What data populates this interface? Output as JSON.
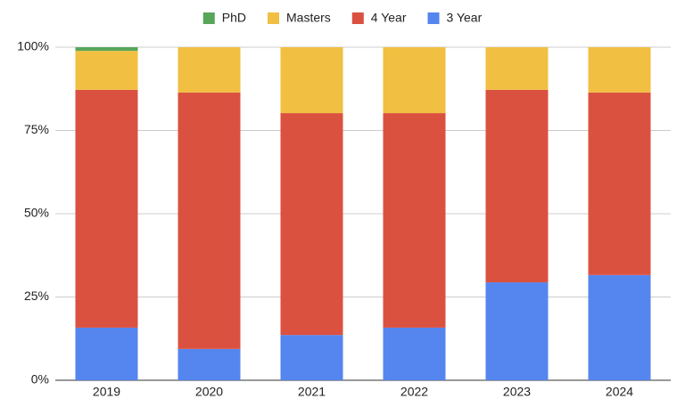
{
  "chart_data": {
    "type": "stacked_bar",
    "categories": [
      "2019",
      "2020",
      "2021",
      "2022",
      "2023",
      "2024"
    ],
    "series": [
      {
        "name": "PhD",
        "color": "#57a65a",
        "values": [
          1.1,
          0,
          0,
          0,
          0,
          0
        ]
      },
      {
        "name": "Masters",
        "color": "#f1bf42",
        "values": [
          11.7,
          13.6,
          19.8,
          19.8,
          12.8,
          13.6
        ]
      },
      {
        "name": "4 Year",
        "color": "#db5140",
        "values": [
          71.4,
          77.0,
          66.6,
          64.4,
          57.8,
          54.8
        ]
      },
      {
        "name": "3 Year",
        "color": "#5585ee",
        "values": [
          15.8,
          9.4,
          13.6,
          15.8,
          29.4,
          31.6
        ]
      }
    ],
    "ylim": [
      0,
      100
    ],
    "yticks": [
      {
        "value": 0,
        "label": "0%"
      },
      {
        "value": 25,
        "label": "25%"
      },
      {
        "value": 50,
        "label": "50%"
      },
      {
        "value": 75,
        "label": "75%"
      },
      {
        "value": 100,
        "label": "100%"
      }
    ],
    "grid": true,
    "legend": "top"
  }
}
